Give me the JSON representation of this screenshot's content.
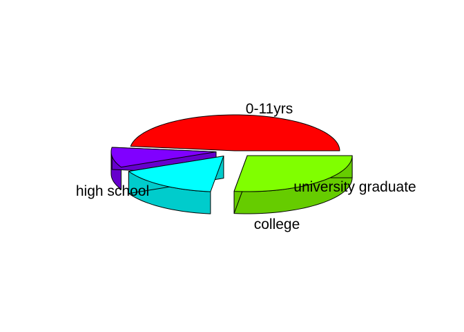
{
  "chart_data": {
    "type": "pie",
    "variant": "3d-exploded",
    "title": "",
    "slices": [
      {
        "label": "0-11yrs",
        "value": 0.48,
        "color": "#ff0000",
        "side_color": "#cc0000"
      },
      {
        "label": "university graduate",
        "value": 0.09,
        "color": "#8000ff",
        "side_color": "#6600cc"
      },
      {
        "label": "college",
        "value": 0.16,
        "color": "#00ffff",
        "side_color": "#00cccc"
      },
      {
        "label": "high school",
        "value": 0.27,
        "color": "#80ff00",
        "side_color": "#66cc00"
      }
    ]
  }
}
